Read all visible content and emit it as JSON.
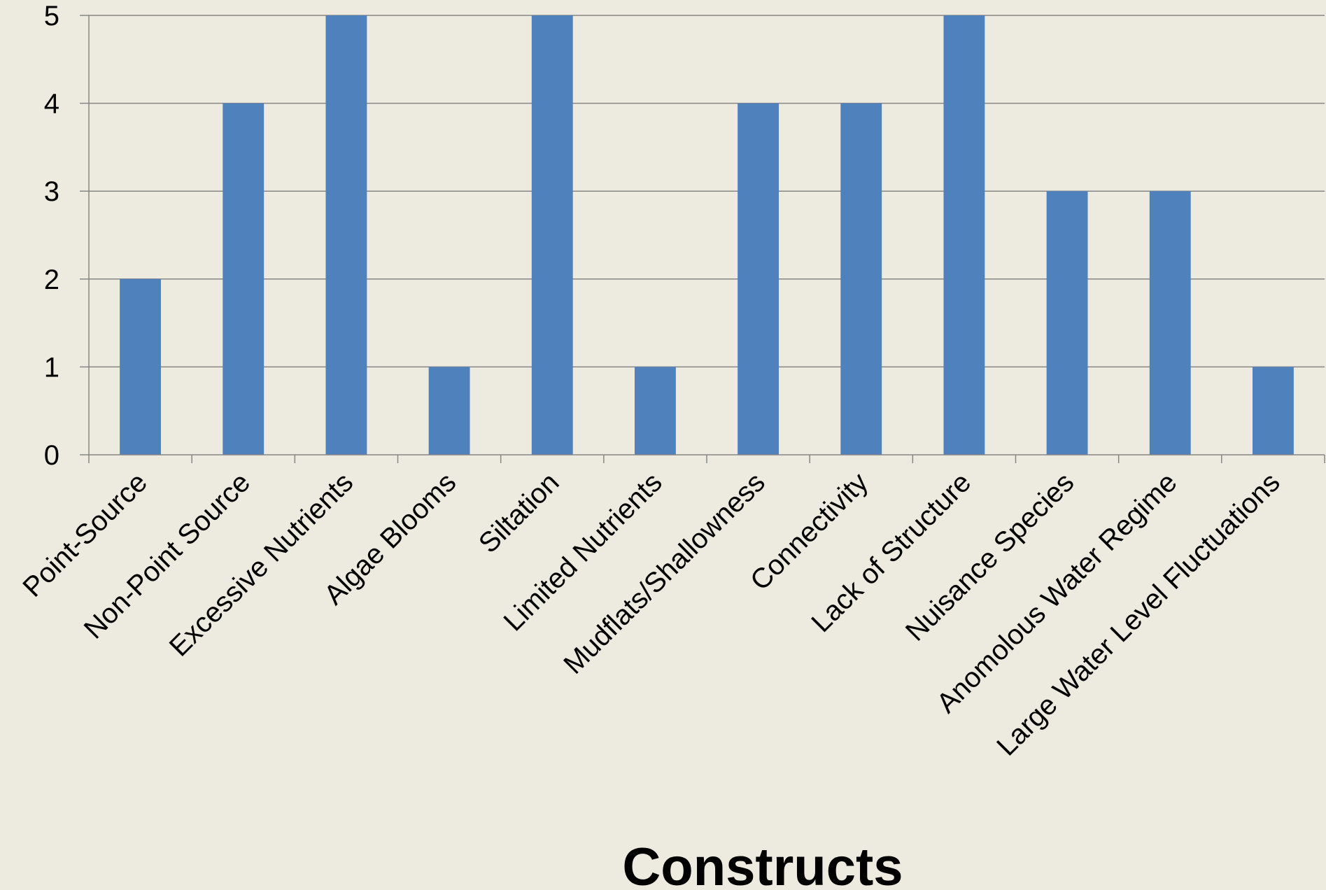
{
  "chart_data": {
    "type": "bar",
    "categories": [
      "Point-Source",
      "Non-Point Source",
      "Excessive Nutrients",
      "Algae Blooms",
      "Siltation",
      "Limited Nutrients",
      "Mudflats/Shallowness",
      "Connectivity",
      "Lack of Structure",
      "Nuisance Species",
      "Anomolous Water Regime",
      "Large Water Level Fluctuations"
    ],
    "values": [
      2,
      4,
      5,
      1,
      5,
      1,
      4,
      4,
      5,
      3,
      3,
      1
    ],
    "title": "",
    "xlabel": "Constructs",
    "ylabel": "",
    "ylim": [
      0,
      5
    ],
    "yticks": [
      "0",
      "1",
      "2",
      "3",
      "4",
      "5"
    ],
    "grid": true,
    "legend": "none",
    "colors": {
      "bar": "#4F81BD",
      "background": "#EDEBE0",
      "grid": "#868686",
      "axis": "#868686"
    }
  }
}
